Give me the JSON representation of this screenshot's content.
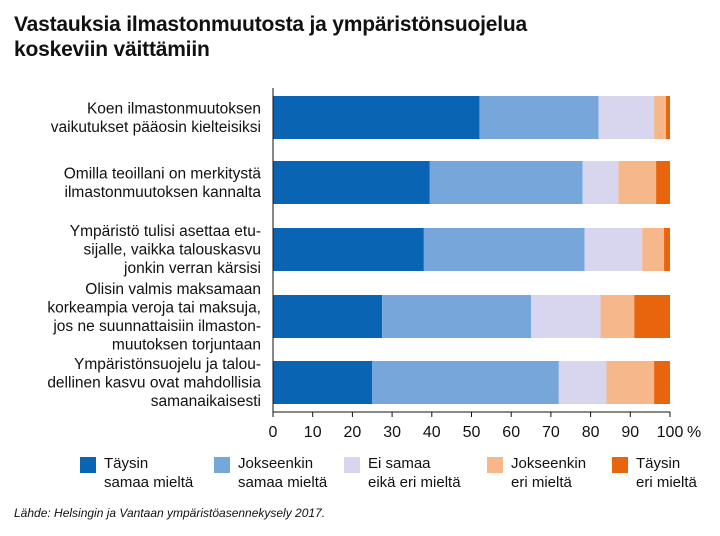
{
  "chart_data": {
    "type": "bar",
    "orientation": "horizontal",
    "stacked": true,
    "title": "Vastauksia ilmastonmuutosta ja ympäristönsuojelua koskeviin väittämiin",
    "title_lines": [
      "Vastauksia ilmastonmuutosta ja ympäristönsuojelua",
      "koskeviin väittämiin"
    ],
    "categories": [
      [
        "Koen ilmastonmuutoksen",
        "vaikutukset pääosin kielteisiksi"
      ],
      [
        "Omilla teoillani on merkitystä",
        "ilmastonmuutoksen kannalta"
      ],
      [
        "Ympäristö tulisi asettaa etu-",
        "sijalle, vaikka talouskasvu",
        "jonkin verran kärsisi"
      ],
      [
        "Olisin valmis maksamaan",
        "korkeampia veroja tai maksuja,",
        "jos ne suunnattaisiin ilmaston-",
        "muutoksen torjuntaan"
      ],
      [
        "Ympäristönsuojelu ja talou-",
        "dellinen kasvu ovat mahdollisia",
        "samanaikaisesti"
      ]
    ],
    "series": [
      {
        "name_lines": [
          "Täysin",
          "samaa mieltä"
        ],
        "color": "#0a64b4",
        "values": [
          52,
          39.5,
          38,
          27.5,
          25
        ]
      },
      {
        "name_lines": [
          "Jokseenkin",
          "samaa mieltä"
        ],
        "color": "#77a6da",
        "values": [
          30,
          38.5,
          40.5,
          37.5,
          47
        ]
      },
      {
        "name_lines": [
          "Ei samaa",
          "eikä eri mieltä"
        ],
        "color": "#d8d6ee",
        "values": [
          14,
          9,
          14.5,
          17.5,
          12
        ]
      },
      {
        "name_lines": [
          "Jokseenkin",
          "eri mieltä"
        ],
        "color": "#f6b78a",
        "values": [
          3,
          9.5,
          5.5,
          8.5,
          12
        ]
      },
      {
        "name_lines": [
          "Täysin",
          "eri mieltä"
        ],
        "color": "#e9650d",
        "values": [
          1,
          3.5,
          1.5,
          9,
          4
        ]
      }
    ],
    "xlim": [
      0,
      100
    ],
    "xticks": [
      "0",
      "10",
      "20",
      "30",
      "40",
      "50",
      "60",
      "70",
      "80",
      "90",
      "100"
    ],
    "x_unit": "%",
    "legend_position": "bottom",
    "grid": false
  },
  "source": "Lähde: Helsingin ja Vantaan ympäristöasennekysely 2017."
}
